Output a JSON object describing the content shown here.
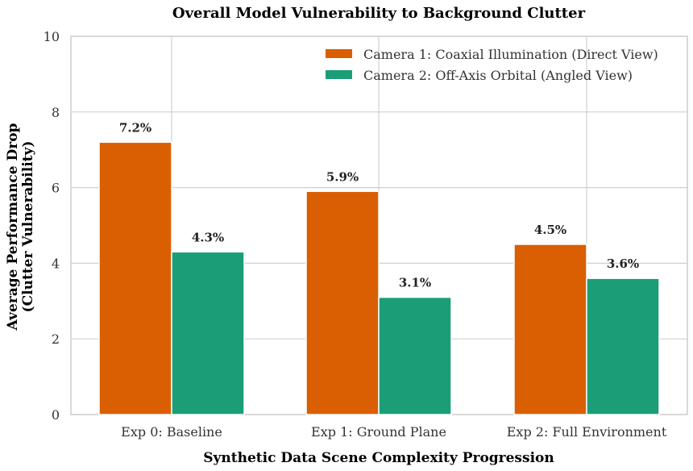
{
  "chart_data": {
    "type": "bar",
    "title": "Overall Model Vulnerability to Background Clutter",
    "xlabel": "Synthetic Data Scene Complexity Progression",
    "ylabel_lines": [
      "Average Performance Drop",
      "(Clutter Vulnerability)"
    ],
    "categories": [
      "Exp 0: Baseline",
      "Exp 1: Ground Plane",
      "Exp 2: Full Environment"
    ],
    "series": [
      {
        "name": "Camera 1: Coaxial Illumination (Direct View)",
        "color": "#d95f02",
        "values": [
          7.2,
          5.9,
          4.5
        ],
        "labels": [
          "7.2%",
          "5.9%",
          "4.5%"
        ]
      },
      {
        "name": "Camera 2: Off-Axis Orbital (Angled View)",
        "color": "#1b9e77",
        "values": [
          4.3,
          3.1,
          3.6
        ],
        "labels": [
          "4.3%",
          "3.1%",
          "3.6%"
        ]
      }
    ],
    "ylim": [
      0,
      10
    ],
    "yticks": [
      0,
      2,
      4,
      6,
      8,
      10
    ],
    "grid": true,
    "legend_position": "top-right"
  }
}
